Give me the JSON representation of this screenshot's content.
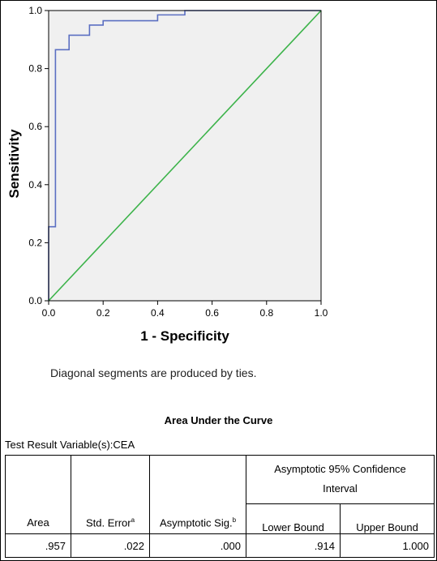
{
  "chart_data": {
    "type": "line",
    "xlabel": "1 - Specificity",
    "ylabel": "Sensitivity",
    "xlim": [
      0,
      1
    ],
    "ylim": [
      0,
      1
    ],
    "x_ticks": [
      "0.0",
      "0.2",
      "0.4",
      "0.6",
      "0.8",
      "1.0"
    ],
    "y_ticks": [
      "0.0",
      "0.2",
      "0.4",
      "0.6",
      "0.8",
      "1.0"
    ],
    "grid": false,
    "background": "#f0f0f0",
    "series": [
      {
        "color": "#5b6fc2",
        "x": [
          0,
          0,
          0.025,
          0.025,
          0.075,
          0.075,
          0.15,
          0.15,
          0.2,
          0.2,
          0.4,
          0.4,
          0.5,
          0.5,
          1.0
        ],
        "y": [
          0,
          0.255,
          0.255,
          0.865,
          0.865,
          0.915,
          0.915,
          0.95,
          0.95,
          0.965,
          0.965,
          0.985,
          0.985,
          1.0,
          1.0
        ]
      },
      {
        "color": "#3cb34a",
        "x": [
          0,
          1
        ],
        "y": [
          0,
          1
        ]
      }
    ]
  },
  "note": "Diagonal segments are produced by ties.",
  "auc_table": {
    "title": "Area Under the Curve",
    "variable": "Test Result Variable(s):CEA",
    "headers": {
      "area": "Area",
      "std_error": "Std. Error",
      "std_error_sup": "a",
      "asymptotic_sig": "Asymptotic Sig.",
      "asymptotic_sig_sup": "b",
      "ci_line1": "Asymptotic 95% Confidence",
      "ci_line2": "Interval",
      "lower": "Lower Bound",
      "upper": "Upper Bound"
    },
    "row": {
      "area": ".957",
      "std_error": ".022",
      "asymptotic_sig": ".000",
      "lower": ".914",
      "upper": "1.000"
    }
  }
}
